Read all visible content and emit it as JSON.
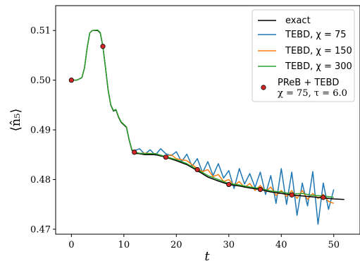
{
  "chart_data": {
    "type": "line",
    "xlabel": "t",
    "ylabel": "⟨n̂₅⟩",
    "xlim": [
      -3,
      55
    ],
    "ylim": [
      0.469,
      0.515
    ],
    "xticks": [
      0,
      10,
      20,
      30,
      40,
      50
    ],
    "yticks": [
      0.47,
      0.48,
      0.49,
      0.5,
      0.51
    ],
    "ytick_labels": [
      "0.47",
      "0.48",
      "0.49",
      "0.50",
      "0.51"
    ],
    "legend_position": "top-right",
    "series": [
      {
        "name": "exact",
        "color": "#000000",
        "x": [
          0,
          1,
          2,
          2.5,
          3,
          3.5,
          4,
          5,
          5.5,
          6,
          6.5,
          7,
          7.5,
          8,
          8.5,
          9,
          9.5,
          10,
          10.5,
          11,
          11.5,
          12,
          13,
          14,
          16,
          18,
          20,
          22,
          24,
          26,
          28,
          30,
          32,
          34,
          36,
          38,
          40,
          42,
          44,
          46,
          48,
          50,
          52
        ],
        "y": [
          0.5,
          0.5,
          0.5005,
          0.5025,
          0.5065,
          0.5095,
          0.51,
          0.51,
          0.5095,
          0.5068,
          0.5025,
          0.498,
          0.495,
          0.4938,
          0.494,
          0.4925,
          0.4915,
          0.491,
          0.4905,
          0.488,
          0.486,
          0.4853,
          0.4852,
          0.485,
          0.485,
          0.4845,
          0.4838,
          0.483,
          0.4818,
          0.4805,
          0.4797,
          0.479,
          0.4787,
          0.4783,
          0.478,
          0.4775,
          0.4772,
          0.4769,
          0.4767,
          0.4765,
          0.4763,
          0.4761,
          0.476
        ]
      },
      {
        "name": "TEBD, χ = 75",
        "color": "#1f77b4",
        "x": [
          12,
          13,
          14,
          15,
          16,
          17,
          18,
          19,
          20,
          21,
          22,
          23,
          24,
          25,
          26,
          27,
          28,
          29,
          30,
          31,
          32,
          33,
          34,
          35,
          36,
          37,
          38,
          39,
          40,
          41,
          42,
          43,
          44,
          45,
          46,
          47,
          48,
          49,
          50
        ],
        "y": [
          0.4858,
          0.4862,
          0.4851,
          0.486,
          0.4849,
          0.4862,
          0.4852,
          0.4848,
          0.4856,
          0.4836,
          0.4851,
          0.4827,
          0.4842,
          0.4814,
          0.4836,
          0.4808,
          0.4832,
          0.4803,
          0.4818,
          0.4782,
          0.4822,
          0.4791,
          0.4812,
          0.4784,
          0.4815,
          0.477,
          0.4808,
          0.4752,
          0.4822,
          0.475,
          0.4815,
          0.4728,
          0.4793,
          0.4747,
          0.4816,
          0.471,
          0.4793,
          0.474,
          0.478
        ]
      },
      {
        "name": "TEBD, χ = 150",
        "color": "#ff7f0e",
        "x": [
          12,
          14,
          16,
          18,
          19,
          20,
          21,
          22,
          23,
          24,
          25,
          26,
          27,
          28,
          29,
          30,
          31,
          32,
          33,
          34,
          35,
          36,
          37,
          38,
          39,
          40,
          41,
          42,
          43,
          44,
          45,
          46,
          47,
          48,
          49,
          50
        ],
        "y": [
          0.4852,
          0.4853,
          0.4852,
          0.4846,
          0.485,
          0.4842,
          0.484,
          0.4838,
          0.483,
          0.4822,
          0.4816,
          0.482,
          0.4806,
          0.481,
          0.4796,
          0.48,
          0.4788,
          0.4796,
          0.4784,
          0.4792,
          0.4778,
          0.4788,
          0.4776,
          0.4785,
          0.4768,
          0.4778,
          0.4766,
          0.4778,
          0.4762,
          0.4778,
          0.476,
          0.4772,
          0.4762,
          0.477,
          0.4756,
          0.4752
        ]
      },
      {
        "name": "TEBD, χ = 300",
        "color": "#2ca02c",
        "x": [
          0,
          1,
          2,
          2.5,
          3,
          3.5,
          4,
          5,
          5.5,
          6,
          6.5,
          7,
          7.5,
          8,
          8.5,
          9,
          9.5,
          10,
          10.5,
          11,
          11.5,
          12,
          13,
          14,
          16,
          18,
          20,
          22,
          24,
          26,
          28,
          30,
          32,
          34,
          36,
          38,
          40,
          42,
          44,
          46,
          48,
          50
        ],
        "y": [
          0.5,
          0.5,
          0.5005,
          0.5025,
          0.5065,
          0.5095,
          0.51,
          0.5101,
          0.5096,
          0.5068,
          0.5026,
          0.4981,
          0.4951,
          0.4939,
          0.4941,
          0.4926,
          0.4916,
          0.4911,
          0.4906,
          0.4881,
          0.4861,
          0.4855,
          0.4853,
          0.4852,
          0.4852,
          0.4846,
          0.484,
          0.4832,
          0.482,
          0.4808,
          0.48,
          0.4792,
          0.4789,
          0.4785,
          0.4782,
          0.4777,
          0.4775,
          0.4771,
          0.4772,
          0.4768,
          0.4767,
          0.4764
        ]
      },
      {
        "name": "PReB + TEBD",
        "name_line2": "χ = 75, τ = 6.0",
        "marker": "circle",
        "color": "#d62728",
        "x": [
          0,
          6,
          12,
          18,
          24,
          30,
          36,
          42,
          48
        ],
        "y": [
          0.5,
          0.5068,
          0.4855,
          0.4845,
          0.482,
          0.479,
          0.478,
          0.4769,
          0.4764
        ]
      }
    ]
  }
}
